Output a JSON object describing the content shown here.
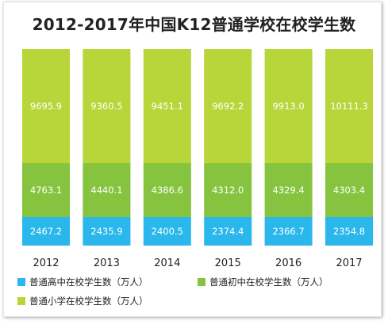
{
  "chart_data": {
    "type": "bar",
    "stacked": true,
    "title": "2012-2017年中国K12普通学校在校学生数",
    "categories": [
      "2012",
      "2013",
      "2014",
      "2015",
      "2016",
      "2017"
    ],
    "series": [
      {
        "name": "普通高中在校学生数（万人）",
        "color": "#29b7ec",
        "values": [
          2467.2,
          2435.9,
          2400.5,
          2374.4,
          2366.7,
          2354.8
        ],
        "labels": [
          "2467.2",
          "2435.9",
          "2400.5",
          "2374.4",
          "2366.7",
          "2354.8"
        ]
      },
      {
        "name": "普通初中在校学生数（万人）",
        "color": "#86c440",
        "values": [
          4763.1,
          4440.1,
          4386.6,
          4312.0,
          4329.4,
          4303.4
        ],
        "labels": [
          "4763.1",
          "4440.1",
          "4386.6",
          "4312.0",
          "4329.4",
          "4303.4"
        ]
      },
      {
        "name": "普通小学在校学生数（万人）",
        "color": "#b8d63a",
        "values": [
          9695.9,
          9360.5,
          9451.1,
          9692.2,
          9913.0,
          10111.3
        ],
        "labels": [
          "9695.9",
          "9360.5",
          "9451.1",
          "9692.2",
          "9913.0",
          "10111.3"
        ]
      }
    ],
    "legend_position": "bottom",
    "grid": false
  }
}
